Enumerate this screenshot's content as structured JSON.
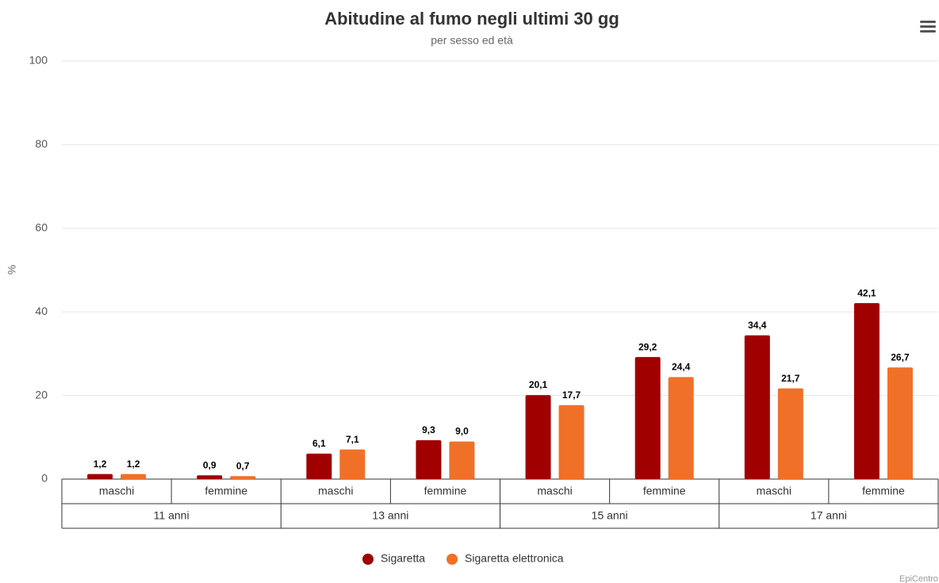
{
  "chart_data": {
    "type": "bar",
    "title": "Abitudine al fumo negli ultimi 30 gg",
    "subtitle": "per sesso ed età",
    "y_label": "%",
    "categories": [
      "maschi",
      "femmine",
      "maschi",
      "femmine",
      "maschi",
      "femmine",
      "maschi",
      "femmine"
    ],
    "category_groups": [
      "11 anni",
      "13 anni",
      "15 anni",
      "17 anni"
    ],
    "series": [
      {
        "name": "Sigaretta",
        "color": "#a00000",
        "values": [
          1.2,
          0.9,
          6.1,
          9.3,
          20.1,
          29.2,
          34.4,
          42.1
        ],
        "value_labels": [
          "1,2",
          "0,9",
          "6,1",
          "9,3",
          "20,1",
          "29,2",
          "34,4",
          "42,1"
        ]
      },
      {
        "name": "Sigaretta elettronica",
        "color": "#f07028",
        "values": [
          1.2,
          0.7,
          7.1,
          9.0,
          17.7,
          24.4,
          21.7,
          26.7
        ],
        "value_labels": [
          "1,2",
          "0,7",
          "7,1",
          "9,0",
          "17,7",
          "24,4",
          "21,7",
          "26,7"
        ]
      }
    ],
    "ylim": [
      0,
      100
    ],
    "yticks": [
      0,
      20,
      40,
      60,
      80,
      100
    ],
    "grid": true,
    "legend": "bottom",
    "credits": "EpiCentro"
  }
}
